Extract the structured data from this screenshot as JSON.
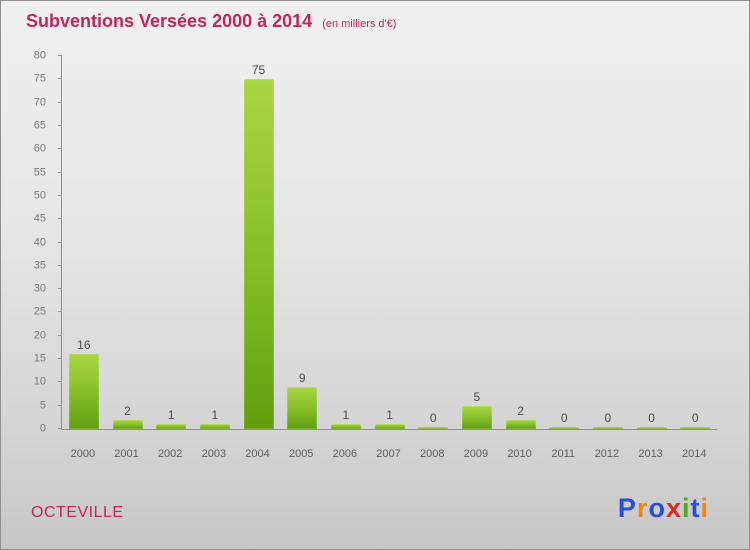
{
  "header": {
    "title": "Subventions Versées 2000 à 2014",
    "subtitle": "(en milliers d'€)"
  },
  "footer": {
    "entity": "OCTEVILLE"
  },
  "logo": {
    "text": "Proxiti",
    "letters": [
      {
        "ch": "P",
        "color": "#2a4fd0"
      },
      {
        "ch": "r",
        "color": "#f5820b"
      },
      {
        "ch": "o",
        "color": "#2a4fd0"
      },
      {
        "ch": "x",
        "color": "#e02a1e"
      },
      {
        "ch": "i",
        "color": "#54a81f"
      },
      {
        "ch": "t",
        "color": "#2a4fd0"
      },
      {
        "ch": "i",
        "color": "#f5820b"
      }
    ]
  },
  "chart_data": {
    "type": "bar",
    "title": "Subventions Versées 2000 à 2014",
    "subtitle": "(en milliers d'€)",
    "categories": [
      "2000",
      "2001",
      "2002",
      "2003",
      "2004",
      "2005",
      "2006",
      "2007",
      "2008",
      "2009",
      "2010",
      "2011",
      "2012",
      "2013",
      "2014"
    ],
    "values": [
      16,
      2,
      1,
      1,
      75,
      9,
      1,
      1,
      0,
      5,
      2,
      0,
      0,
      0,
      0
    ],
    "xlabel": "",
    "ylabel": "",
    "ylim": [
      0,
      80
    ],
    "ytick_step": 5,
    "grid": false,
    "legend": false,
    "value_labels": true
  },
  "colors": {
    "title": "#c22558",
    "bar_top": "#a9d646",
    "bar_mid": "#84bc27",
    "bar_bottom": "#619e0f",
    "tick_text": "#787878",
    "value_label": "#4a4a4a"
  }
}
